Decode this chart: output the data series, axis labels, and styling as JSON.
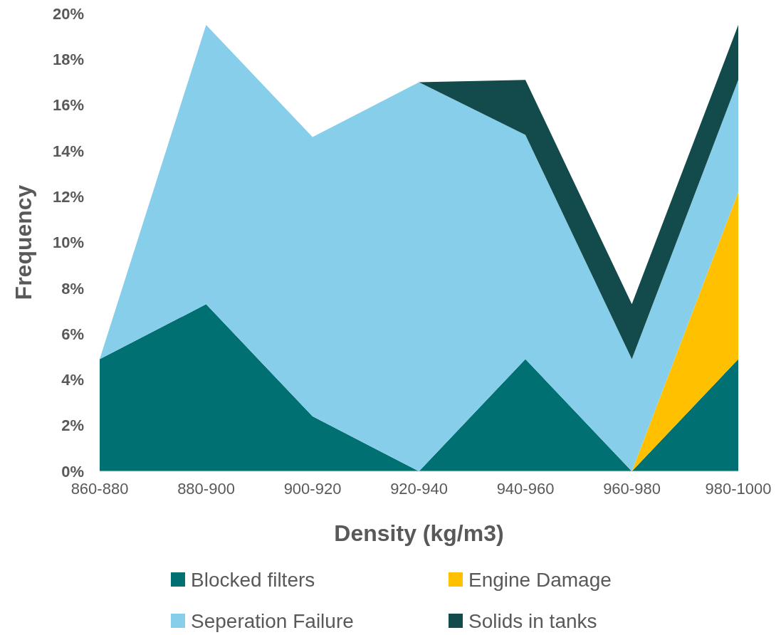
{
  "chart_data": {
    "type": "area",
    "stacked": true,
    "xlabel": "Density (kg/m3)",
    "ylabel": "Frequency",
    "categories": [
      "860-880",
      "880-900",
      "900-920",
      "920-940",
      "940-960",
      "960-980",
      "980-1000"
    ],
    "series": [
      {
        "name": "Blocked filters",
        "color": "#007073",
        "values": [
          4.9,
          7.3,
          2.4,
          0,
          4.9,
          0,
          4.9
        ]
      },
      {
        "name": "Engine Damage",
        "color": "#ffc000",
        "values": [
          0,
          0,
          0,
          0,
          0,
          0,
          7.3
        ]
      },
      {
        "name": "Seperation Failure",
        "color": "#87ceeb",
        "values": [
          0,
          12.2,
          12.2,
          17.0,
          9.8,
          4.9,
          4.9
        ]
      },
      {
        "name": "Solids in tanks",
        "color": "#134a4b",
        "values": [
          0,
          0,
          0,
          0,
          2.4,
          2.4,
          2.4
        ]
      }
    ],
    "ylim": [
      0,
      20
    ],
    "yticks": [
      {
        "value": 0,
        "label": "0%"
      },
      {
        "value": 2,
        "label": "2%"
      },
      {
        "value": 4,
        "label": "4%"
      },
      {
        "value": 6,
        "label": "6%"
      },
      {
        "value": 8,
        "label": "8%"
      },
      {
        "value": 10,
        "label": "10%"
      },
      {
        "value": 12,
        "label": "12%"
      },
      {
        "value": 14,
        "label": "14%"
      },
      {
        "value": 16,
        "label": "16%"
      },
      {
        "value": 18,
        "label": "18%"
      },
      {
        "value": 20,
        "label": "20%"
      }
    ],
    "legend": "bottom",
    "grid": false
  }
}
